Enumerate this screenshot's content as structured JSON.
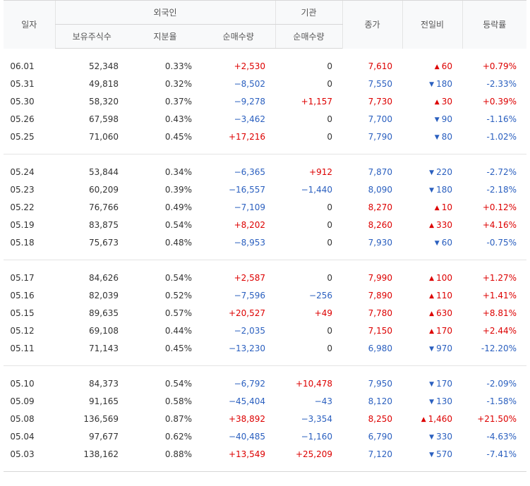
{
  "headers": {
    "date": "일자",
    "foreign": "외국인",
    "institution": "기관",
    "holdings": "보유주식수",
    "share_ratio": "지분율",
    "foreign_net": "순매수량",
    "inst_net": "순매수량",
    "close": "종가",
    "change": "전일비",
    "rate": "등락률"
  },
  "colors": {
    "up": "#dd0000",
    "down": "#2a5fbf"
  },
  "icons": {
    "up": "triangle-up-icon",
    "down": "triangle-down-icon"
  },
  "groups": [
    [
      {
        "date": "06.01",
        "holdings": "52,348",
        "ratio": "0.33%",
        "fnet": "+2,530",
        "fdir": "up",
        "inet": "0",
        "idir": "flat",
        "close": "7,610",
        "cdir": "up",
        "chg": "60",
        "rate": "+0.79%"
      },
      {
        "date": "05.31",
        "holdings": "49,818",
        "ratio": "0.32%",
        "fnet": "−8,502",
        "fdir": "down",
        "inet": "0",
        "idir": "flat",
        "close": "7,550",
        "cdir": "down",
        "chg": "180",
        "rate": "-2.33%"
      },
      {
        "date": "05.30",
        "holdings": "58,320",
        "ratio": "0.37%",
        "fnet": "−9,278",
        "fdir": "down",
        "inet": "+1,157",
        "idir": "up",
        "close": "7,730",
        "cdir": "up",
        "chg": "30",
        "rate": "+0.39%"
      },
      {
        "date": "05.26",
        "holdings": "67,598",
        "ratio": "0.43%",
        "fnet": "−3,462",
        "fdir": "down",
        "inet": "0",
        "idir": "flat",
        "close": "7,700",
        "cdir": "down",
        "chg": "90",
        "rate": "-1.16%"
      },
      {
        "date": "05.25",
        "holdings": "71,060",
        "ratio": "0.45%",
        "fnet": "+17,216",
        "fdir": "up",
        "inet": "0",
        "idir": "flat",
        "close": "7,790",
        "cdir": "down",
        "chg": "80",
        "rate": "-1.02%"
      }
    ],
    [
      {
        "date": "05.24",
        "holdings": "53,844",
        "ratio": "0.34%",
        "fnet": "−6,365",
        "fdir": "down",
        "inet": "+912",
        "idir": "up",
        "close": "7,870",
        "cdir": "down",
        "chg": "220",
        "rate": "-2.72%"
      },
      {
        "date": "05.23",
        "holdings": "60,209",
        "ratio": "0.39%",
        "fnet": "−16,557",
        "fdir": "down",
        "inet": "−1,440",
        "idir": "down",
        "close": "8,090",
        "cdir": "down",
        "chg": "180",
        "rate": "-2.18%"
      },
      {
        "date": "05.22",
        "holdings": "76,766",
        "ratio": "0.49%",
        "fnet": "−7,109",
        "fdir": "down",
        "inet": "0",
        "idir": "flat",
        "close": "8,270",
        "cdir": "up",
        "chg": "10",
        "rate": "+0.12%"
      },
      {
        "date": "05.19",
        "holdings": "83,875",
        "ratio": "0.54%",
        "fnet": "+8,202",
        "fdir": "up",
        "inet": "0",
        "idir": "flat",
        "close": "8,260",
        "cdir": "up",
        "chg": "330",
        "rate": "+4.16%"
      },
      {
        "date": "05.18",
        "holdings": "75,673",
        "ratio": "0.48%",
        "fnet": "−8,953",
        "fdir": "down",
        "inet": "0",
        "idir": "flat",
        "close": "7,930",
        "cdir": "down",
        "chg": "60",
        "rate": "-0.75%"
      }
    ],
    [
      {
        "date": "05.17",
        "holdings": "84,626",
        "ratio": "0.54%",
        "fnet": "+2,587",
        "fdir": "up",
        "inet": "0",
        "idir": "flat",
        "close": "7,990",
        "cdir": "up",
        "chg": "100",
        "rate": "+1.27%"
      },
      {
        "date": "05.16",
        "holdings": "82,039",
        "ratio": "0.52%",
        "fnet": "−7,596",
        "fdir": "down",
        "inet": "−256",
        "idir": "down",
        "close": "7,890",
        "cdir": "up",
        "chg": "110",
        "rate": "+1.41%"
      },
      {
        "date": "05.15",
        "holdings": "89,635",
        "ratio": "0.57%",
        "fnet": "+20,527",
        "fdir": "up",
        "inet": "+49",
        "idir": "up",
        "close": "7,780",
        "cdir": "up",
        "chg": "630",
        "rate": "+8.81%"
      },
      {
        "date": "05.12",
        "holdings": "69,108",
        "ratio": "0.44%",
        "fnet": "−2,035",
        "fdir": "down",
        "inet": "0",
        "idir": "flat",
        "close": "7,150",
        "cdir": "up",
        "chg": "170",
        "rate": "+2.44%"
      },
      {
        "date": "05.11",
        "holdings": "71,143",
        "ratio": "0.45%",
        "fnet": "−13,230",
        "fdir": "down",
        "inet": "0",
        "idir": "flat",
        "close": "6,980",
        "cdir": "down",
        "chg": "970",
        "rate": "-12.20%"
      }
    ],
    [
      {
        "date": "05.10",
        "holdings": "84,373",
        "ratio": "0.54%",
        "fnet": "−6,792",
        "fdir": "down",
        "inet": "+10,478",
        "idir": "up",
        "close": "7,950",
        "cdir": "down",
        "chg": "170",
        "rate": "-2.09%"
      },
      {
        "date": "05.09",
        "holdings": "91,165",
        "ratio": "0.58%",
        "fnet": "−45,404",
        "fdir": "down",
        "inet": "−43",
        "idir": "down",
        "close": "8,120",
        "cdir": "down",
        "chg": "130",
        "rate": "-1.58%"
      },
      {
        "date": "05.08",
        "holdings": "136,569",
        "ratio": "0.87%",
        "fnet": "+38,892",
        "fdir": "up",
        "inet": "−3,354",
        "idir": "down",
        "close": "8,250",
        "cdir": "up",
        "chg": "1,460",
        "rate": "+21.50%"
      },
      {
        "date": "05.04",
        "holdings": "97,677",
        "ratio": "0.62%",
        "fnet": "−40,485",
        "fdir": "down",
        "inet": "−1,160",
        "idir": "down",
        "close": "6,790",
        "cdir": "down",
        "chg": "330",
        "rate": "-4.63%"
      },
      {
        "date": "05.03",
        "holdings": "138,162",
        "ratio": "0.88%",
        "fnet": "+13,549",
        "fdir": "up",
        "inet": "+25,209",
        "idir": "up",
        "close": "7,120",
        "cdir": "down",
        "chg": "570",
        "rate": "-7.41%"
      }
    ]
  ]
}
